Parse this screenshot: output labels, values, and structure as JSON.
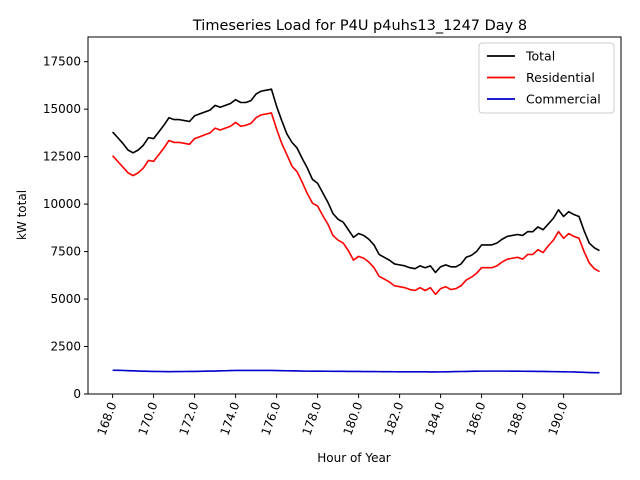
{
  "chart_data": {
    "type": "line",
    "title": "Timeseries Load for P4U p4uhs13_1247  Day 8",
    "xlabel": "Hour of Year",
    "ylabel": "kW total",
    "xlim": [
      166.8,
      192.8
    ],
    "ylim": [
      0,
      18800
    ],
    "xticks": [
      168.0,
      170.0,
      172.0,
      174.0,
      176.0,
      178.0,
      180.0,
      182.0,
      184.0,
      186.0,
      188.0,
      190.0
    ],
    "xtick_labels": [
      "168.0",
      "170.0",
      "172.0",
      "174.0",
      "176.0",
      "178.0",
      "180.0",
      "182.0",
      "184.0",
      "186.0",
      "188.0",
      "190.0"
    ],
    "yticks": [
      0,
      2500,
      5000,
      7500,
      10000,
      12500,
      15000,
      17500
    ],
    "ytick_labels": [
      "0",
      "2500",
      "5000",
      "7500",
      "10000",
      "12500",
      "15000",
      "17500"
    ],
    "grid": false,
    "legend_position": "top-right",
    "x_start": 168.0,
    "x_step": 0.25,
    "series": [
      {
        "name": "Total",
        "color": "#000000",
        "values": [
          13800,
          13500,
          13200,
          12850,
          12700,
          12850,
          13100,
          13500,
          13450,
          13800,
          14150,
          14550,
          14450,
          14450,
          14400,
          14350,
          14650,
          14750,
          14850,
          14950,
          15200,
          15100,
          15200,
          15300,
          15500,
          15350,
          15350,
          15450,
          15800,
          15950,
          16000,
          16050,
          15150,
          14400,
          13700,
          13250,
          12950,
          12400,
          11900,
          11300,
          11100,
          10600,
          10100,
          9500,
          9200,
          9050,
          8650,
          8250,
          8450,
          8350,
          8150,
          7850,
          7350,
          7200,
          7050,
          6850,
          6800,
          6750,
          6650,
          6600,
          6750,
          6650,
          6750,
          6400,
          6700,
          6800,
          6700,
          6700,
          6850,
          7200,
          7300,
          7500,
          7850,
          7850,
          7850,
          7950,
          8150,
          8300,
          8350,
          8400,
          8350,
          8550,
          8550,
          8800,
          8650,
          8950,
          9250,
          9700,
          9350,
          9600,
          9450,
          9350,
          8600,
          7950,
          7700,
          7550
        ]
      },
      {
        "name": "Residential",
        "color": "#ff0000",
        "values": [
          12550,
          12250,
          11950,
          11650,
          11500,
          11650,
          11900,
          12300,
          12250,
          12600,
          12950,
          13350,
          13250,
          13250,
          13200,
          13150,
          13450,
          13550,
          13650,
          13750,
          14000,
          13900,
          14000,
          14100,
          14300,
          14100,
          14150,
          14250,
          14550,
          14700,
          14750,
          14800,
          13950,
          13200,
          12600,
          12000,
          11700,
          11150,
          10550,
          10050,
          9900,
          9400,
          8950,
          8350,
          8100,
          7950,
          7550,
          7050,
          7250,
          7150,
          6950,
          6650,
          6200,
          6050,
          5900,
          5700,
          5650,
          5600,
          5500,
          5450,
          5600,
          5450,
          5600,
          5250,
          5550,
          5650,
          5500,
          5550,
          5700,
          6000,
          6150,
          6350,
          6650,
          6650,
          6650,
          6750,
          6950,
          7100,
          7150,
          7200,
          7100,
          7350,
          7350,
          7600,
          7450,
          7800,
          8100,
          8550,
          8200,
          8450,
          8300,
          8200,
          7500,
          6900,
          6600,
          6450
        ]
      },
      {
        "name": "Commercial",
        "color": "#0000cc",
        "values": [
          1250,
          1245,
          1240,
          1230,
          1220,
          1210,
          1200,
          1195,
          1190,
          1185,
          1180,
          1175,
          1180,
          1180,
          1185,
          1190,
          1190,
          1195,
          1200,
          1210,
          1210,
          1220,
          1225,
          1235,
          1240,
          1240,
          1240,
          1240,
          1240,
          1240,
          1240,
          1240,
          1235,
          1230,
          1225,
          1220,
          1215,
          1210,
          1205,
          1200,
          1200,
          1200,
          1198,
          1196,
          1194,
          1192,
          1190,
          1188,
          1186,
          1184,
          1182,
          1180,
          1178,
          1176,
          1174,
          1172,
          1170,
          1170,
          1170,
          1170,
          1168,
          1166,
          1164,
          1162,
          1165,
          1170,
          1175,
          1180,
          1185,
          1190,
          1195,
          1200,
          1205,
          1205,
          1205,
          1205,
          1205,
          1205,
          1203,
          1200,
          1198,
          1196,
          1194,
          1190,
          1186,
          1182,
          1178,
          1174,
          1170,
          1165,
          1160,
          1150,
          1140,
          1130,
          1125,
          1120
        ]
      }
    ]
  }
}
